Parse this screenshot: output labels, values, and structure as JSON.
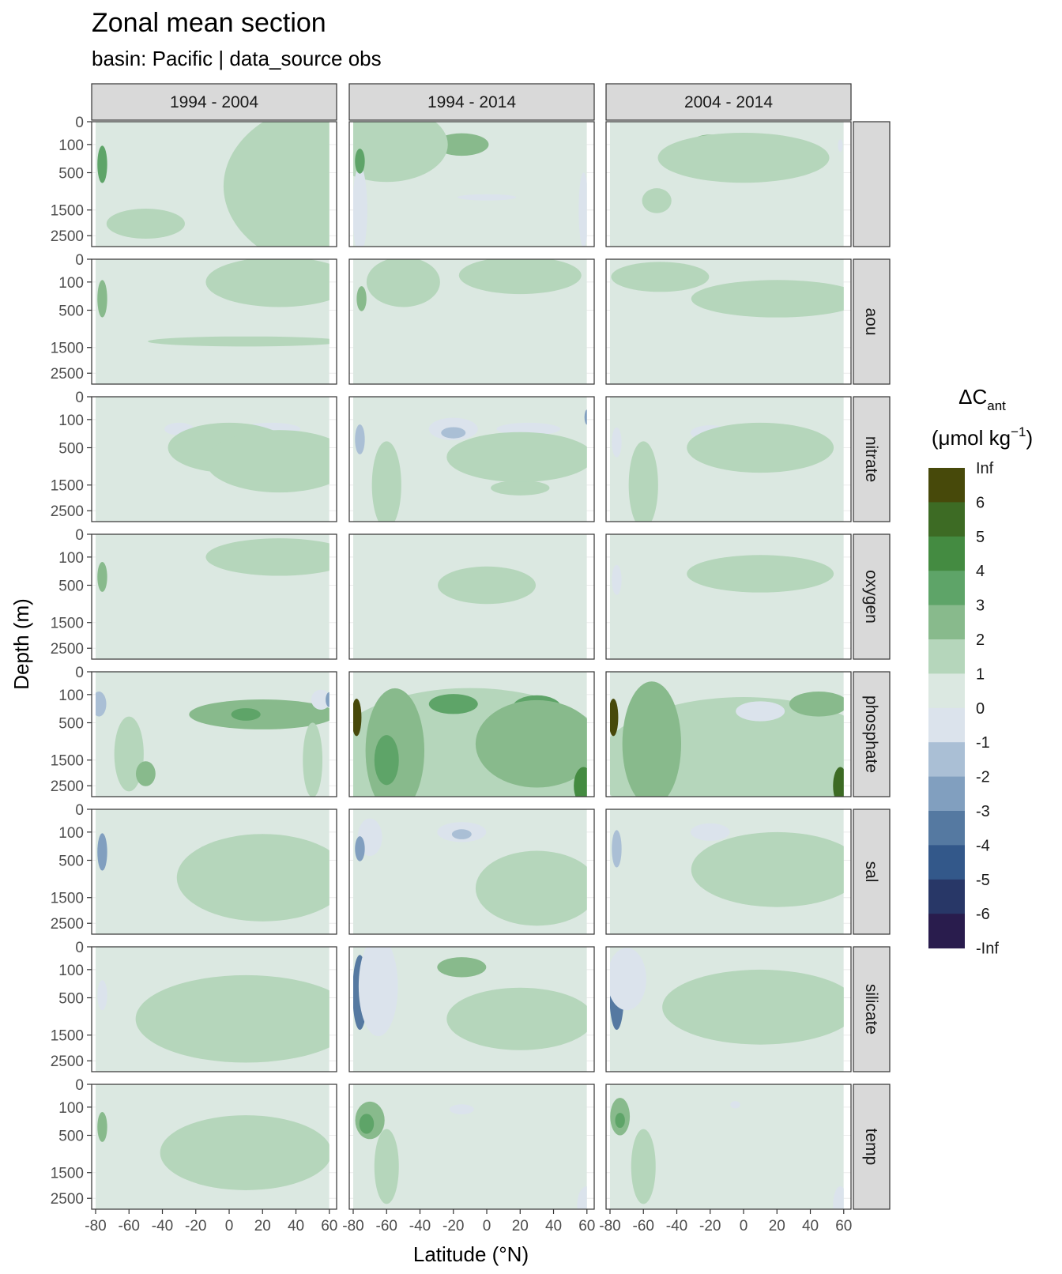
{
  "chart_data": {
    "type": "heatmap",
    "title": "Zonal mean section",
    "subtitle": "basin: Pacific | data_source obs",
    "xlabel": "Latitude (°N)",
    "ylabel": "Depth (m)",
    "x_ticks": [
      "-80",
      "-60",
      "-40",
      "-20",
      "0",
      "20",
      "40",
      "60"
    ],
    "x_tick_values": [
      -80,
      -60,
      -40,
      -20,
      0,
      20,
      40,
      60
    ],
    "xlim": [
      -80,
      62
    ],
    "y_ticks": [
      "0",
      "100",
      "500",
      "1500",
      "2500"
    ],
    "y_tick_values": [
      0,
      100,
      500,
      1500,
      2500
    ],
    "ylim": [
      3000,
      0
    ],
    "y_scale": "sqrt",
    "columns": [
      "1994 - 2004",
      "1994 - 2014",
      "2004 - 2014"
    ],
    "rows": [
      "",
      "aou",
      "nitrate",
      "oxygen",
      "phosphate",
      "sal",
      "silicate",
      "temp"
    ],
    "legend": {
      "title_main": "ΔC",
      "title_sub": "ant",
      "title_unit": "(μmol kg",
      "title_sup": "−1",
      "title_close": ")",
      "placement": "right",
      "labels": [
        "Inf",
        "6",
        "5",
        "4",
        "3",
        "2",
        "1",
        "0",
        "-1",
        "-2",
        "-3",
        "-4",
        "-5",
        "-6",
        "-Inf"
      ],
      "colors": [
        "#47490a",
        "#3d6b24",
        "#448b41",
        "#5ea468",
        "#88ba8c",
        "#b5d6bb",
        "#dbe8e1",
        "#dbe3ec",
        "#aabfd5",
        "#819fbf",
        "#5579a1",
        "#33588a",
        "#283767",
        "#291c4d"
      ]
    },
    "features": [
      {
        "row": 0,
        "col": 0,
        "lat": 70,
        "depth": 800,
        "rx": 0.5,
        "ry": 0.7,
        "v": 0.5
      },
      {
        "row": 0,
        "col": 0,
        "lat": -76,
        "depth": 350,
        "rx": 0.02,
        "ry": 0.15,
        "v": 3
      },
      {
        "row": 0,
        "col": 0,
        "lat": -50,
        "depth": 2000,
        "rx": 0.16,
        "ry": 0.12,
        "v": 0.5
      },
      {
        "row": 0,
        "col": 1,
        "lat": -15,
        "depth": 100,
        "rx": 0.11,
        "ry": 0.09,
        "v": 1.5
      },
      {
        "row": 0,
        "col": 1,
        "lat": -60,
        "depth": 100,
        "rx": 0.25,
        "ry": 0.3,
        "v": 0.5
      },
      {
        "row": 0,
        "col": 1,
        "lat": -76,
        "depth": 1500,
        "rx": 0.03,
        "ry": 0.35,
        "v": -1.5
      },
      {
        "row": 0,
        "col": 1,
        "lat": -76,
        "depth": 300,
        "rx": 0.02,
        "ry": 0.1,
        "v": 3
      },
      {
        "row": 0,
        "col": 1,
        "lat": 58,
        "depth": 1500,
        "rx": 0.02,
        "ry": 0.3,
        "v": -1.5
      },
      {
        "row": 0,
        "col": 1,
        "lat": 0,
        "depth": 1100,
        "rx": 0.12,
        "ry": 0.025,
        "v": -1.5
      },
      {
        "row": 0,
        "col": 2,
        "lat": -20,
        "depth": 100,
        "rx": 0.08,
        "ry": 0.08,
        "v": 1.5
      },
      {
        "row": 0,
        "col": 2,
        "lat": 0,
        "depth": 250,
        "rx": 0.35,
        "ry": 0.2,
        "v": 0.5
      },
      {
        "row": 0,
        "col": 2,
        "lat": -52,
        "depth": 1200,
        "rx": 0.06,
        "ry": 0.1,
        "v": 0.5
      },
      {
        "row": 0,
        "col": 2,
        "lat": 58,
        "depth": 110,
        "rx": 0.01,
        "ry": 0.05,
        "v": -1.5
      },
      {
        "row": 1,
        "col": 0,
        "lat": -76,
        "depth": 300,
        "rx": 0.02,
        "ry": 0.15,
        "v": 1.5
      },
      {
        "row": 1,
        "col": 0,
        "lat": 30,
        "depth": 100,
        "rx": 0.3,
        "ry": 0.2,
        "v": 0.5
      },
      {
        "row": 1,
        "col": 0,
        "lat": 10,
        "depth": 1300,
        "rx": 0.4,
        "ry": 0.04,
        "v": 0.5
      },
      {
        "row": 1,
        "col": 1,
        "lat": 20,
        "depth": 50,
        "rx": 0.25,
        "ry": 0.15,
        "v": 0.5
      },
      {
        "row": 1,
        "col": 1,
        "lat": -75,
        "depth": 300,
        "rx": 0.02,
        "ry": 0.1,
        "v": 1.5
      },
      {
        "row": 1,
        "col": 1,
        "lat": -50,
        "depth": 100,
        "rx": 0.15,
        "ry": 0.2,
        "v": 0.5
      },
      {
        "row": 1,
        "col": 2,
        "lat": 20,
        "depth": 300,
        "rx": 0.35,
        "ry": 0.15,
        "v": 0.5
      },
      {
        "row": 1,
        "col": 2,
        "lat": -50,
        "depth": 60,
        "rx": 0.2,
        "ry": 0.12,
        "v": 0.5
      },
      {
        "row": 2,
        "col": 0,
        "lat": -30,
        "depth": 200,
        "rx": 0.06,
        "ry": 0.05,
        "v": -1.5
      },
      {
        "row": 2,
        "col": 0,
        "lat": 25,
        "depth": 200,
        "rx": 0.12,
        "ry": 0.05,
        "v": -1.5
      },
      {
        "row": 2,
        "col": 0,
        "lat": 0,
        "depth": 500,
        "rx": 0.25,
        "ry": 0.2,
        "v": 0.5
      },
      {
        "row": 2,
        "col": 0,
        "lat": 30,
        "depth": 800,
        "rx": 0.3,
        "ry": 0.25,
        "v": 0.5
      },
      {
        "row": 2,
        "col": 1,
        "lat": -20,
        "depth": 200,
        "rx": 0.1,
        "ry": 0.09,
        "v": -1.5
      },
      {
        "row": 2,
        "col": 1,
        "lat": -20,
        "depth": 250,
        "rx": 0.05,
        "ry": 0.045,
        "v": -2.5
      },
      {
        "row": 2,
        "col": 1,
        "lat": 25,
        "depth": 200,
        "rx": 0.13,
        "ry": 0.05,
        "v": -1.5
      },
      {
        "row": 2,
        "col": 1,
        "lat": -76,
        "depth": 350,
        "rx": 0.02,
        "ry": 0.12,
        "v": -2.5
      },
      {
        "row": 2,
        "col": 1,
        "lat": 20,
        "depth": 1600,
        "rx": 0.12,
        "ry": 0.06,
        "v": 0.5
      },
      {
        "row": 2,
        "col": 1,
        "lat": 20,
        "depth": 700,
        "rx": 0.3,
        "ry": 0.2,
        "v": 0.5
      },
      {
        "row": 2,
        "col": 1,
        "lat": -60,
        "depth": 1500,
        "rx": 0.06,
        "ry": 0.35,
        "v": 0.5
      },
      {
        "row": 2,
        "col": 1,
        "lat": 60,
        "depth": 80,
        "rx": 0.01,
        "ry": 0.06,
        "v": -3
      },
      {
        "row": 2,
        "col": 2,
        "lat": -20,
        "depth": 250,
        "rx": 0.08,
        "ry": 0.06,
        "v": -1.5
      },
      {
        "row": 2,
        "col": 2,
        "lat": 10,
        "depth": 500,
        "rx": 0.3,
        "ry": 0.2,
        "v": 0.5
      },
      {
        "row": 2,
        "col": 2,
        "lat": -76,
        "depth": 400,
        "rx": 0.02,
        "ry": 0.12,
        "v": -1.5
      },
      {
        "row": 2,
        "col": 2,
        "lat": -60,
        "depth": 1500,
        "rx": 0.06,
        "ry": 0.35,
        "v": 0.5
      },
      {
        "row": 3,
        "col": 0,
        "lat": -76,
        "depth": 350,
        "rx": 0.02,
        "ry": 0.12,
        "v": 1.5
      },
      {
        "row": 3,
        "col": 0,
        "lat": 30,
        "depth": 100,
        "rx": 0.3,
        "ry": 0.15,
        "v": 0.5
      },
      {
        "row": 3,
        "col": 1,
        "lat": 0,
        "depth": 500,
        "rx": 0.2,
        "ry": 0.15,
        "v": 0.5
      },
      {
        "row": 3,
        "col": 2,
        "lat": 10,
        "depth": 300,
        "rx": 0.3,
        "ry": 0.15,
        "v": 0.5
      },
      {
        "row": 3,
        "col": 2,
        "lat": -76,
        "depth": 400,
        "rx": 0.02,
        "ry": 0.12,
        "v": -1.5
      },
      {
        "row": 4,
        "col": 0,
        "lat": 20,
        "depth": 350,
        "rx": 0.3,
        "ry": 0.12,
        "v": 1.5
      },
      {
        "row": 4,
        "col": 0,
        "lat": 10,
        "depth": 350,
        "rx": 0.06,
        "ry": 0.05,
        "v": 2.5
      },
      {
        "row": 4,
        "col": 0,
        "lat": -78,
        "depth": 200,
        "rx": 0.03,
        "ry": 0.1,
        "v": -2.5
      },
      {
        "row": 4,
        "col": 0,
        "lat": 55,
        "depth": 150,
        "rx": 0.04,
        "ry": 0.08,
        "v": -1.5
      },
      {
        "row": 4,
        "col": 0,
        "lat": 60,
        "depth": 150,
        "rx": 0.015,
        "ry": 0.06,
        "v": -3.5
      },
      {
        "row": 4,
        "col": 0,
        "lat": -60,
        "depth": 1300,
        "rx": 0.06,
        "ry": 0.3,
        "v": 0.5
      },
      {
        "row": 4,
        "col": 0,
        "lat": -50,
        "depth": 2000,
        "rx": 0.04,
        "ry": 0.1,
        "v": 1.5
      },
      {
        "row": 4,
        "col": 0,
        "lat": 50,
        "depth": 1500,
        "rx": 0.04,
        "ry": 0.3,
        "v": 0.5
      },
      {
        "row": 4,
        "col": 1,
        "lat": -10,
        "depth": 1600,
        "rx": 0.6,
        "ry": 0.6,
        "v": 0.5
      },
      {
        "row": 4,
        "col": 1,
        "lat": -55,
        "depth": 1200,
        "rx": 0.12,
        "ry": 0.5,
        "v": 1.5
      },
      {
        "row": 4,
        "col": 1,
        "lat": -60,
        "depth": 1500,
        "rx": 0.05,
        "ry": 0.2,
        "v": 2.5
      },
      {
        "row": 4,
        "col": 1,
        "lat": -20,
        "depth": 200,
        "rx": 0.1,
        "ry": 0.08,
        "v": 2.5
      },
      {
        "row": 4,
        "col": 1,
        "lat": 30,
        "depth": 250,
        "rx": 0.1,
        "ry": 0.1,
        "v": 2.5
      },
      {
        "row": 4,
        "col": 1,
        "lat": 30,
        "depth": 1000,
        "rx": 0.25,
        "ry": 0.35,
        "v": 1.5
      },
      {
        "row": 4,
        "col": 1,
        "lat": 58,
        "depth": 2500,
        "rx": 0.04,
        "ry": 0.15,
        "v": 3.5
      },
      {
        "row": 4,
        "col": 1,
        "lat": -78,
        "depth": 400,
        "rx": 0.02,
        "ry": 0.15,
        "v": 5.5
      },
      {
        "row": 4,
        "col": 1,
        "lat": 62,
        "depth": 40,
        "rx": 0.01,
        "ry": 0.04,
        "v": 5.5
      },
      {
        "row": 4,
        "col": 2,
        "lat": 0,
        "depth": 1700,
        "rx": 0.6,
        "ry": 0.55,
        "v": 0.5
      },
      {
        "row": 4,
        "col": 2,
        "lat": -55,
        "depth": 1000,
        "rx": 0.12,
        "ry": 0.5,
        "v": 1.5
      },
      {
        "row": 4,
        "col": 2,
        "lat": 10,
        "depth": 300,
        "rx": 0.1,
        "ry": 0.08,
        "v": -1.5
      },
      {
        "row": 4,
        "col": 2,
        "lat": 45,
        "depth": 200,
        "rx": 0.12,
        "ry": 0.1,
        "v": 1.5
      },
      {
        "row": 4,
        "col": 2,
        "lat": 58,
        "depth": 2500,
        "rx": 0.03,
        "ry": 0.15,
        "v": 4.5
      },
      {
        "row": 4,
        "col": 2,
        "lat": -78,
        "depth": 400,
        "rx": 0.02,
        "ry": 0.15,
        "v": 5.5
      },
      {
        "row": 5,
        "col": 0,
        "lat": -76,
        "depth": 350,
        "rx": 0.02,
        "ry": 0.15,
        "v": -3
      },
      {
        "row": 5,
        "col": 0,
        "lat": 20,
        "depth": 900,
        "rx": 0.35,
        "ry": 0.35,
        "v": 0.5
      },
      {
        "row": 5,
        "col": 1,
        "lat": -15,
        "depth": 100,
        "rx": 0.1,
        "ry": 0.08,
        "v": -1.5
      },
      {
        "row": 5,
        "col": 1,
        "lat": -15,
        "depth": 120,
        "rx": 0.04,
        "ry": 0.04,
        "v": -2.5
      },
      {
        "row": 5,
        "col": 1,
        "lat": -70,
        "depth": 150,
        "rx": 0.05,
        "ry": 0.15,
        "v": -1.5
      },
      {
        "row": 5,
        "col": 1,
        "lat": -76,
        "depth": 300,
        "rx": 0.02,
        "ry": 0.1,
        "v": -3.5
      },
      {
        "row": 5,
        "col": 1,
        "lat": 30,
        "depth": 1200,
        "rx": 0.25,
        "ry": 0.3,
        "v": 0.5
      },
      {
        "row": 5,
        "col": 2,
        "lat": -20,
        "depth": 100,
        "rx": 0.08,
        "ry": 0.07,
        "v": -1.5
      },
      {
        "row": 5,
        "col": 2,
        "lat": -76,
        "depth": 300,
        "rx": 0.02,
        "ry": 0.15,
        "v": -2.5
      },
      {
        "row": 5,
        "col": 2,
        "lat": 20,
        "depth": 700,
        "rx": 0.35,
        "ry": 0.3,
        "v": 0.5
      },
      {
        "row": 6,
        "col": 0,
        "lat": -76,
        "depth": 450,
        "rx": 0.02,
        "ry": 0.12,
        "v": -1.5
      },
      {
        "row": 6,
        "col": 0,
        "lat": 10,
        "depth": 1000,
        "rx": 0.45,
        "ry": 0.35,
        "v": 0.5
      },
      {
        "row": 6,
        "col": 1,
        "lat": -76,
        "depth": 400,
        "rx": 0.03,
        "ry": 0.3,
        "v": -4.5
      },
      {
        "row": 6,
        "col": 1,
        "lat": -65,
        "depth": 300,
        "rx": 0.08,
        "ry": 0.4,
        "v": -1.5
      },
      {
        "row": 6,
        "col": 1,
        "lat": -15,
        "depth": 80,
        "rx": 0.1,
        "ry": 0.08,
        "v": 1.5
      },
      {
        "row": 6,
        "col": 1,
        "lat": 20,
        "depth": 1000,
        "rx": 0.3,
        "ry": 0.25,
        "v": 0.5
      },
      {
        "row": 6,
        "col": 2,
        "lat": -76,
        "depth": 400,
        "rx": 0.03,
        "ry": 0.3,
        "v": -4.5
      },
      {
        "row": 6,
        "col": 2,
        "lat": -70,
        "depth": 200,
        "rx": 0.08,
        "ry": 0.25,
        "v": -1.5
      },
      {
        "row": 6,
        "col": 2,
        "lat": 10,
        "depth": 700,
        "rx": 0.4,
        "ry": 0.3,
        "v": 0.5
      },
      {
        "row": 7,
        "col": 0,
        "lat": -76,
        "depth": 350,
        "rx": 0.02,
        "ry": 0.12,
        "v": 1.5
      },
      {
        "row": 7,
        "col": 0,
        "lat": 10,
        "depth": 900,
        "rx": 0.35,
        "ry": 0.3,
        "v": 0.5
      },
      {
        "row": 7,
        "col": 1,
        "lat": -70,
        "depth": 250,
        "rx": 0.06,
        "ry": 0.15,
        "v": 1.5
      },
      {
        "row": 7,
        "col": 1,
        "lat": -72,
        "depth": 300,
        "rx": 0.03,
        "ry": 0.08,
        "v": 2.5
      },
      {
        "row": 7,
        "col": 1,
        "lat": -15,
        "depth": 120,
        "rx": 0.05,
        "ry": 0.04,
        "v": -1.5
      },
      {
        "row": 7,
        "col": 1,
        "lat": 60,
        "depth": 2800,
        "rx": 0.04,
        "ry": 0.15,
        "v": -1.5
      },
      {
        "row": 7,
        "col": 1,
        "lat": -60,
        "depth": 1300,
        "rx": 0.05,
        "ry": 0.3,
        "v": 0.5
      },
      {
        "row": 7,
        "col": 2,
        "lat": -74,
        "depth": 200,
        "rx": 0.04,
        "ry": 0.15,
        "v": 1.5
      },
      {
        "row": 7,
        "col": 2,
        "lat": -74,
        "depth": 250,
        "rx": 0.02,
        "ry": 0.06,
        "v": 2.5
      },
      {
        "row": 7,
        "col": 2,
        "lat": -5,
        "depth": 80,
        "rx": 0.02,
        "ry": 0.03,
        "v": -1.5
      },
      {
        "row": 7,
        "col": 2,
        "lat": 58,
        "depth": 2800,
        "rx": 0.03,
        "ry": 0.15,
        "v": -1.5
      },
      {
        "row": 7,
        "col": 2,
        "lat": -60,
        "depth": 1300,
        "rx": 0.05,
        "ry": 0.3,
        "v": 0.5
      }
    ]
  }
}
